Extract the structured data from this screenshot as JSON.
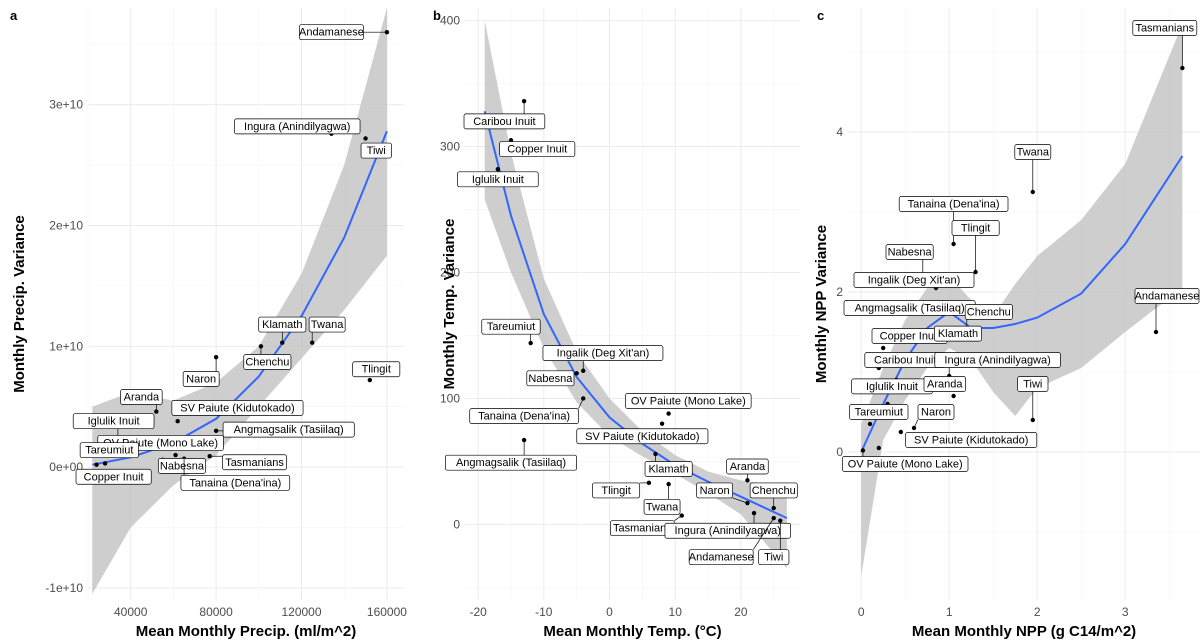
{
  "chart_data": [
    {
      "type": "scatter",
      "panel": "a",
      "xlabel": "Mean Monthly Precip. (ml/m^2)",
      "ylabel": "Monthly Precip. Variance",
      "xlim": [
        20000,
        168000
      ],
      "ylim": [
        -11000000000,
        38000000000
      ],
      "xticks": [
        40000,
        80000,
        120000,
        160000
      ],
      "xtick_labels": [
        "40000",
        "80000",
        "120000",
        "160000"
      ],
      "yticks": [
        -10000000000,
        0,
        10000000000,
        20000000000,
        30000000000
      ],
      "ytick_labels": [
        "-1e+10",
        "0e+00",
        "1e+10",
        "2e+10",
        "3e+10"
      ],
      "grid": true,
      "smooth_color": "#3366ff",
      "band_color": "#bdbdbd",
      "points": [
        {
          "label": "Andamanese",
          "x": 160000,
          "y": 36000000000,
          "lx": 134000,
          "ly": 36000000000
        },
        {
          "label": "Ingura (Anindilyagwa)",
          "x": 134000,
          "y": 27600000000,
          "lx": 118000,
          "ly": 28200000000
        },
        {
          "label": "Tiwi",
          "x": 150000,
          "y": 27200000000,
          "lx": 155000,
          "ly": 26200000000
        },
        {
          "label": "Klamath",
          "x": 111000,
          "y": 10300000000,
          "lx": 111000,
          "ly": 11800000000
        },
        {
          "label": "Twana",
          "x": 125000,
          "y": 10300000000,
          "lx": 132000,
          "ly": 11800000000
        },
        {
          "label": "Chenchu",
          "x": 101000,
          "y": 10000000000,
          "lx": 104000,
          "ly": 8700000000
        },
        {
          "label": "Naron",
          "x": 80000,
          "y": 9100000000,
          "lx": 73000,
          "ly": 7300000000
        },
        {
          "label": "Tlingit",
          "x": 152000,
          "y": 7200000000,
          "lx": 155000,
          "ly": 8100000000
        },
        {
          "label": "Aranda",
          "x": 52000,
          "y": 4600000000,
          "lx": 45000,
          "ly": 5800000000
        },
        {
          "label": "SV Paiute (Kidutokado)",
          "x": 62000,
          "y": 3800000000,
          "lx": 90000,
          "ly": 4900000000
        },
        {
          "label": "Iglulik Inuit",
          "x": 34000,
          "y": 2200000000,
          "lx": 32000,
          "ly": 3800000000
        },
        {
          "label": "Angmagsalik (Tasiilaq)",
          "x": 80000,
          "y": 3000000000,
          "lx": 114000,
          "ly": 3100000000
        },
        {
          "label": "OV Paiute (Mono Lake)",
          "x": 46000,
          "y": 1800000000,
          "lx": 54000,
          "ly": 2000000000
        },
        {
          "label": "Tareumiut",
          "x": 33000,
          "y": 1000000000,
          "lx": 30000,
          "ly": 1400000000
        },
        {
          "label": "Nabesna",
          "x": 55000,
          "y": 600000000,
          "lx": 64000,
          "ly": 100000000
        },
        {
          "label": "Tasmanians",
          "x": 77000,
          "y": 900000000,
          "lx": 98000,
          "ly": 400000000
        },
        {
          "label": "Copper Inuit",
          "x": 28000,
          "y": 300000000,
          "lx": 32000,
          "ly": -800000000
        },
        {
          "label": "Tanaina (Dena'ina)",
          "x": 65000,
          "y": 700000000,
          "lx": 89000,
          "ly": -1300000000
        },
        {
          "label": "",
          "x": 24000,
          "y": 200000000
        },
        {
          "label": "",
          "x": 61000,
          "y": 1000000000
        },
        {
          "label": "",
          "x": 40000,
          "y": 1500000000
        }
      ],
      "smooth": [
        [
          22000,
          200000000
        ],
        [
          40000,
          800000000
        ],
        [
          60000,
          2000000000
        ],
        [
          80000,
          4000000000
        ],
        [
          100000,
          7500000000
        ],
        [
          120000,
          12500000000
        ],
        [
          140000,
          19000000000
        ],
        [
          160000,
          27800000000
        ]
      ],
      "band_upper": [
        [
          22000,
          5000000000
        ],
        [
          40000,
          6200000000
        ],
        [
          60000,
          5500000000
        ],
        [
          80000,
          7000000000
        ],
        [
          100000,
          10000000000
        ],
        [
          120000,
          16000000000
        ],
        [
          140000,
          25000000000
        ],
        [
          160000,
          38000000000
        ]
      ],
      "band_lower": [
        [
          22000,
          -10500000000
        ],
        [
          40000,
          -5000000000
        ],
        [
          60000,
          -1500000000
        ],
        [
          80000,
          1000000000
        ],
        [
          100000,
          5000000000
        ],
        [
          120000,
          9000000000
        ],
        [
          140000,
          13000000000
        ],
        [
          160000,
          17500000000
        ]
      ]
    },
    {
      "type": "scatter",
      "panel": "b",
      "xlabel": "Mean Monthly Temp. (°C)",
      "ylabel": "Monthly Temp. Variance",
      "xlim": [
        -22,
        29
      ],
      "ylim": [
        -60,
        410
      ],
      "xticks": [
        -20,
        -10,
        0,
        10,
        20
      ],
      "xtick_labels": [
        "-20",
        "-10",
        "0",
        "10",
        "20"
      ],
      "yticks": [
        0,
        100,
        200,
        300,
        400
      ],
      "ytick_labels": [
        "0",
        "100",
        "200",
        "300",
        "400"
      ],
      "grid": true,
      "smooth_color": "#3366ff",
      "band_color": "#bdbdbd",
      "points": [
        {
          "label": "Caribou Inuit",
          "x": -13,
          "y": 336,
          "lx": -16,
          "ly": 320
        },
        {
          "label": "Copper Inuit",
          "x": -15,
          "y": 305,
          "lx": -11,
          "ly": 298
        },
        {
          "label": "Iglulik Inuit",
          "x": -17,
          "y": 282,
          "lx": -17,
          "ly": 274
        },
        {
          "label": "Tareumiut",
          "x": -12,
          "y": 144,
          "lx": -15,
          "ly": 157
        },
        {
          "label": "Ingalik (Deg Xit'an)",
          "x": -4,
          "y": 122,
          "lx": -1,
          "ly": 136
        },
        {
          "label": "Nabesna",
          "x": -5,
          "y": 120,
          "lx": -9,
          "ly": 116
        },
        {
          "label": "OV Paiute (Mono Lake)",
          "x": 9,
          "y": 88,
          "lx": 12,
          "ly": 98
        },
        {
          "label": "Tanaina (Dena'ina)",
          "x": -4,
          "y": 100,
          "lx": -13,
          "ly": 86
        },
        {
          "label": "SV Paiute (Kidutokado)",
          "x": 8,
          "y": 80,
          "lx": 5,
          "ly": 70
        },
        {
          "label": "Angmagsalik (Tasiilaq)",
          "x": -13,
          "y": 67,
          "lx": -15,
          "ly": 49
        },
        {
          "label": "Aranda",
          "x": 21,
          "y": 35,
          "lx": 21,
          "ly": 46
        },
        {
          "label": "Klamath",
          "x": 7,
          "y": 56,
          "lx": 9,
          "ly": 44
        },
        {
          "label": "Tlingit",
          "x": 6,
          "y": 33,
          "lx": 1,
          "ly": 27
        },
        {
          "label": "Twana",
          "x": 9,
          "y": 32,
          "lx": 8,
          "ly": 14
        },
        {
          "label": "Naron",
          "x": 21,
          "y": 17,
          "lx": 16,
          "ly": 27
        },
        {
          "label": "Chenchu",
          "x": 25,
          "y": 13,
          "lx": 25,
          "ly": 27
        },
        {
          "label": "Tasmanians",
          "x": 11,
          "y": 7,
          "lx": 5,
          "ly": -3
        },
        {
          "label": "Ingura (Anindilyagwa)",
          "x": 22,
          "y": 9,
          "lx": 18,
          "ly": -5
        },
        {
          "label": "Andamanese",
          "x": 25,
          "y": 5,
          "lx": 17,
          "ly": -26
        },
        {
          "label": "Tiwi",
          "x": 26,
          "y": 3,
          "lx": 25,
          "ly": -26
        }
      ],
      "smooth": [
        [
          -19,
          328
        ],
        [
          -15,
          245
        ],
        [
          -10,
          167
        ],
        [
          -5,
          117
        ],
        [
          0,
          85
        ],
        [
          5,
          64
        ],
        [
          10,
          47
        ],
        [
          15,
          34
        ],
        [
          20,
          22
        ],
        [
          27,
          5
        ]
      ],
      "band_upper": [
        [
          -19,
          400
        ],
        [
          -15,
          295
        ],
        [
          -10,
          195
        ],
        [
          -5,
          137
        ],
        [
          0,
          100
        ],
        [
          5,
          74
        ],
        [
          10,
          55
        ],
        [
          15,
          42
        ],
        [
          20,
          35
        ],
        [
          27,
          30
        ]
      ],
      "band_lower": [
        [
          -19,
          258
        ],
        [
          -15,
          200
        ],
        [
          -10,
          140
        ],
        [
          -5,
          97
        ],
        [
          0,
          70
        ],
        [
          5,
          54
        ],
        [
          10,
          40
        ],
        [
          15,
          25
        ],
        [
          20,
          8
        ],
        [
          27,
          -35
        ]
      ]
    },
    {
      "type": "scatter",
      "panel": "c",
      "xlabel": "Mean Monthly NPP (g C14/m^2)",
      "ylabel": "Monthly NPP Variance",
      "xlim": [
        -0.15,
        3.85
      ],
      "ylim": [
        -1.85,
        5.55
      ],
      "xticks": [
        0,
        1,
        2,
        3
      ],
      "xtick_labels": [
        "0",
        "1",
        "2",
        "3"
      ],
      "yticks": [
        0,
        2,
        4
      ],
      "ytick_labels": [
        "0",
        "2",
        "4"
      ],
      "grid": true,
      "smooth_color": "#3366ff",
      "band_color": "#bdbdbd",
      "points": [
        {
          "label": "Tasmanians",
          "x": 3.65,
          "y": 4.8,
          "lx": 3.45,
          "ly": 5.3
        },
        {
          "label": "Twana",
          "x": 1.95,
          "y": 3.25,
          "lx": 1.95,
          "ly": 3.75
        },
        {
          "label": "Tanaina (Dena'ina)",
          "x": 1.05,
          "y": 2.6,
          "lx": 1.05,
          "ly": 3.1
        },
        {
          "label": "Tlingit",
          "x": 1.3,
          "y": 2.25,
          "lx": 1.3,
          "ly": 2.8
        },
        {
          "label": "Nabesna",
          "x": 0.7,
          "y": 2.2,
          "lx": 0.55,
          "ly": 2.5
        },
        {
          "label": "Ingalik (Deg Xit'an)",
          "x": 0.85,
          "y": 2.05,
          "lx": 0.6,
          "ly": 2.15
        },
        {
          "label": "Angmagsalik (Tasiilaq)",
          "x": 0.82,
          "y": 1.8,
          "lx": 0.55,
          "ly": 1.8
        },
        {
          "label": "Chenchu",
          "x": 1.2,
          "y": 1.5,
          "lx": 1.45,
          "ly": 1.75
        },
        {
          "label": "Andamanese",
          "x": 3.35,
          "y": 1.5,
          "lx": 3.48,
          "ly": 1.95
        },
        {
          "label": "Copper Inuit",
          "x": 0.25,
          "y": 1.3,
          "lx": 0.55,
          "ly": 1.45
        },
        {
          "label": "Klamath",
          "x": 1.0,
          "y": 1.45,
          "lx": 1.1,
          "ly": 1.48
        },
        {
          "label": "Caribou Inuit",
          "x": 0.2,
          "y": 1.05,
          "lx": 0.5,
          "ly": 1.15
        },
        {
          "label": "Ingura (Anindilyagwa)",
          "x": 1.0,
          "y": 0.95,
          "lx": 1.55,
          "ly": 1.15
        },
        {
          "label": "Iglulik Inuit",
          "x": 0.15,
          "y": 0.75,
          "lx": 0.35,
          "ly": 0.82
        },
        {
          "label": "Aranda",
          "x": 1.05,
          "y": 0.7,
          "lx": 0.95,
          "ly": 0.85
        },
        {
          "label": "Tiwi",
          "x": 1.95,
          "y": 0.4,
          "lx": 1.95,
          "ly": 0.85
        },
        {
          "label": "Tareumiut",
          "x": 0.1,
          "y": 0.35,
          "lx": 0.2,
          "ly": 0.5
        },
        {
          "label": "Naron",
          "x": 0.6,
          "y": 0.3,
          "lx": 0.85,
          "ly": 0.5
        },
        {
          "label": "SV Paiute (Kidutokado)",
          "x": 0.45,
          "y": 0.25,
          "lx": 1.25,
          "ly": 0.15
        },
        {
          "label": "OV Paiute (Mono Lake)",
          "x": 0.02,
          "y": 0.02,
          "lx": 0.5,
          "ly": -0.15
        },
        {
          "label": "",
          "x": 0.2,
          "y": 0.05
        },
        {
          "label": "",
          "x": 0.3,
          "y": 0.6
        },
        {
          "label": "",
          "x": 0.4,
          "y": 0.9
        }
      ],
      "smooth": [
        [
          0,
          0.0
        ],
        [
          0.25,
          0.6
        ],
        [
          0.5,
          1.15
        ],
        [
          0.75,
          1.55
        ],
        [
          1.0,
          1.75
        ],
        [
          1.25,
          1.55
        ],
        [
          1.5,
          1.55
        ],
        [
          1.75,
          1.6
        ],
        [
          2.0,
          1.68
        ],
        [
          2.5,
          1.98
        ],
        [
          3.0,
          2.6
        ],
        [
          3.65,
          3.7
        ]
      ],
      "band_upper": [
        [
          0,
          0.35
        ],
        [
          0.25,
          1.05
        ],
        [
          0.5,
          1.65
        ],
        [
          0.75,
          2.05
        ],
        [
          1.0,
          2.2
        ],
        [
          1.25,
          1.9
        ],
        [
          1.5,
          1.7
        ],
        [
          1.75,
          2.1
        ],
        [
          2.0,
          2.45
        ],
        [
          2.5,
          2.9
        ],
        [
          3.0,
          3.6
        ],
        [
          3.65,
          5.35
        ]
      ],
      "band_lower": [
        [
          0,
          -1.55
        ],
        [
          0.25,
          0.15
        ],
        [
          0.5,
          0.65
        ],
        [
          0.75,
          1.05
        ],
        [
          1.0,
          1.3
        ],
        [
          1.25,
          1.15
        ],
        [
          1.5,
          0.75
        ],
        [
          1.75,
          0.45
        ],
        [
          2.0,
          0.8
        ],
        [
          2.5,
          1.05
        ],
        [
          3.0,
          1.5
        ],
        [
          3.65,
          2.05
        ]
      ]
    }
  ]
}
